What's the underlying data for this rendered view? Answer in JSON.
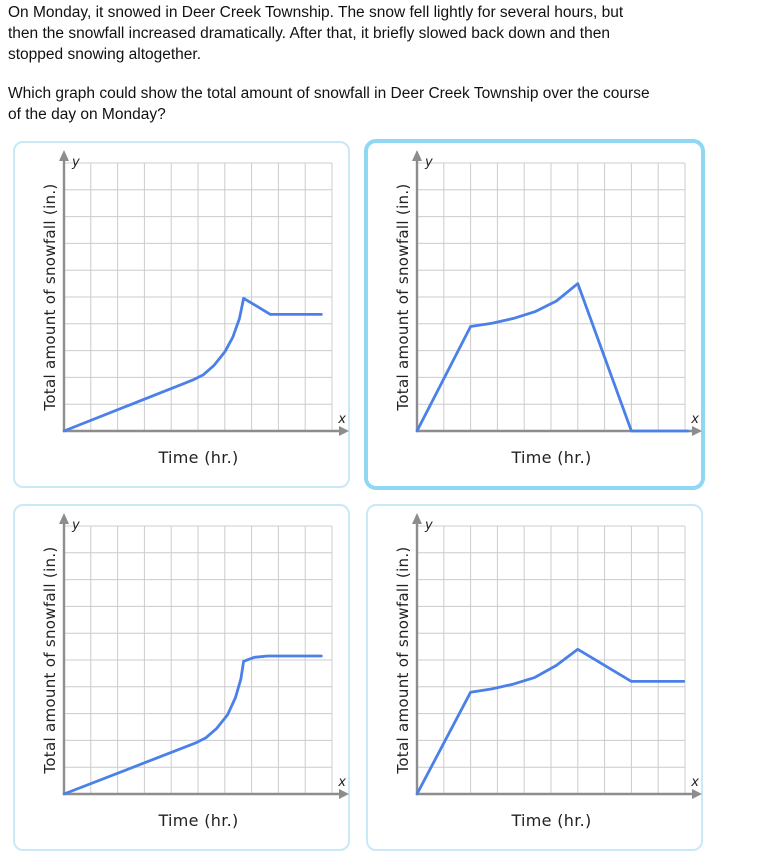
{
  "question": {
    "paragraph_lines": [
      "On Monday, it snowed in Deer Creek Township. The snow fell lightly for several hours, but",
      "then the snowfall increased dramatically. After that, it briefly slowed back down and then",
      "stopped snowing altogether."
    ],
    "prompt_lines": [
      "Which graph could show the total amount of snowfall in Deer Creek Township over the course",
      "of the day on Monday?"
    ]
  },
  "colors": {
    "line": "#4a80e8",
    "grid": "#cccccc",
    "axis": "#8d8d8d",
    "card_border": "#c9e9f6",
    "card_border_selected": "#8fd7f2",
    "label_text": "#222222"
  },
  "chart_data": [
    {
      "id": "graph-option-1",
      "type": "line",
      "position": "top-left",
      "selected": false,
      "title": "",
      "x_axis_title": "Time (hr.)",
      "y_axis_title": "Total amount of snowfall (in.)",
      "x_letter": "x",
      "y_letter": "y",
      "x_range": [
        0,
        10
      ],
      "y_range": [
        0,
        10
      ],
      "grid": true,
      "shape_description": "gradual linear rise, curving steep climb to a peak, slight decline, then constant",
      "points": [
        [
          0,
          0
        ],
        [
          4.8,
          1.9
        ],
        [
          5.2,
          2.1
        ],
        [
          5.6,
          2.45
        ],
        [
          6.0,
          2.95
        ],
        [
          6.3,
          3.5
        ],
        [
          6.55,
          4.2
        ],
        [
          6.7,
          4.95
        ],
        [
          7.7,
          4.35
        ],
        [
          9.6,
          4.35
        ]
      ]
    },
    {
      "id": "graph-option-2",
      "type": "line",
      "position": "top-right",
      "selected": true,
      "title": "",
      "x_axis_title": "Time (hr.)",
      "y_axis_title": "Total amount of snowfall (in.)",
      "x_letter": "x",
      "y_letter": "y",
      "x_range": [
        0,
        10
      ],
      "y_range": [
        0,
        10
      ],
      "grid": true,
      "shape_description": "steep linear rise, slow curving rise to a peak, steep linear fall to zero, then flat at zero",
      "points": [
        [
          0,
          0
        ],
        [
          2,
          3.9
        ],
        [
          2.8,
          4.02
        ],
        [
          3.6,
          4.2
        ],
        [
          4.4,
          4.45
        ],
        [
          5.2,
          4.85
        ],
        [
          6,
          5.5
        ],
        [
          8,
          0
        ],
        [
          10.1,
          0
        ]
      ]
    },
    {
      "id": "graph-option-3",
      "type": "line",
      "position": "bottom-left",
      "selected": false,
      "title": "",
      "x_axis_title": "Time (hr.)",
      "y_axis_title": "Total amount of snowfall (in.)",
      "x_letter": "x",
      "y_letter": "y",
      "x_range": [
        0,
        10
      ],
      "y_range": [
        0,
        10
      ],
      "grid": true,
      "shape_description": "gradual linear rise, curving steep climb, slows, then levels off constant",
      "points": [
        [
          0,
          0
        ],
        [
          4.9,
          1.9
        ],
        [
          5.3,
          2.1
        ],
        [
          5.7,
          2.45
        ],
        [
          6.1,
          2.95
        ],
        [
          6.4,
          3.6
        ],
        [
          6.6,
          4.3
        ],
        [
          6.7,
          4.95
        ],
        [
          7.1,
          5.1
        ],
        [
          7.6,
          5.15
        ],
        [
          9.6,
          5.15
        ]
      ]
    },
    {
      "id": "graph-option-4",
      "type": "line",
      "position": "bottom-right",
      "selected": false,
      "title": "",
      "x_axis_title": "Time (hr.)",
      "y_axis_title": "Total amount of snowfall (in.)",
      "x_letter": "x",
      "y_letter": "y",
      "x_range": [
        0,
        10
      ],
      "y_range": [
        0,
        10
      ],
      "grid": true,
      "shape_description": "steep linear rise, slow curving rise to a peak, moderate decline, then constant",
      "points": [
        [
          0,
          0
        ],
        [
          2,
          3.8
        ],
        [
          2.8,
          3.92
        ],
        [
          3.6,
          4.1
        ],
        [
          4.4,
          4.35
        ],
        [
          5.2,
          4.8
        ],
        [
          6,
          5.4
        ],
        [
          8,
          4.2
        ],
        [
          9.95,
          4.2
        ]
      ]
    }
  ]
}
